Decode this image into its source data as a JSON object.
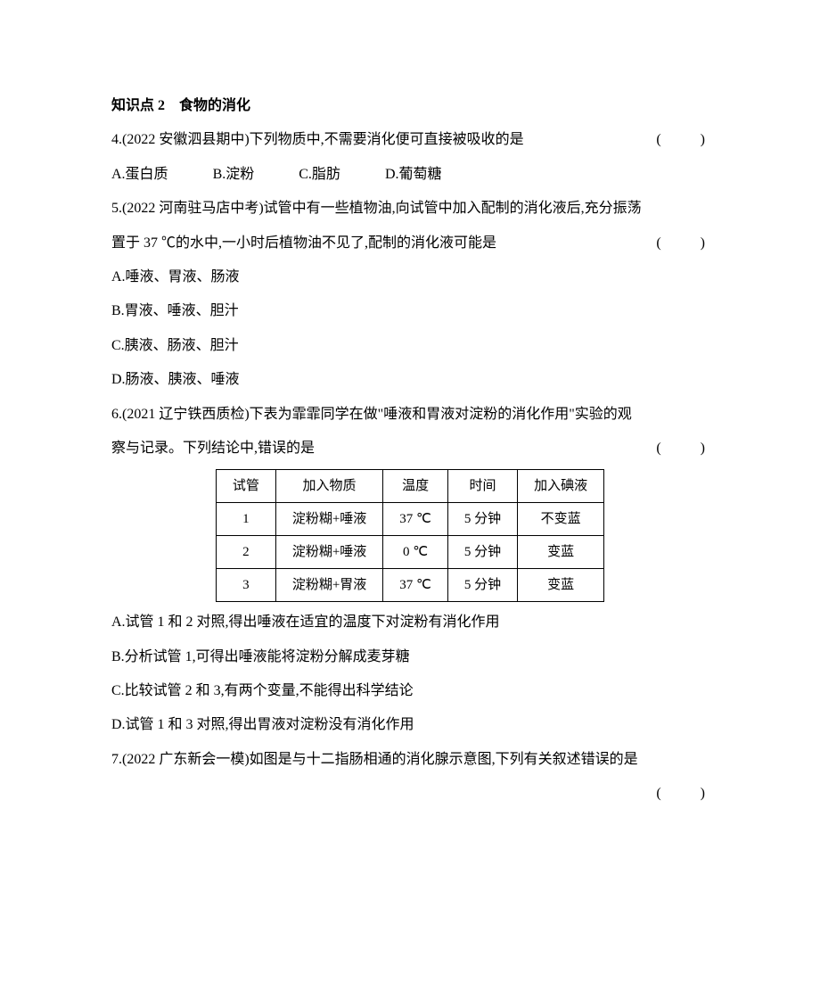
{
  "section_title": "知识点 2　食物的消化",
  "q4": {
    "stem": "4.(2022 安徽泗县期中)下列物质中,不需要消化便可直接被吸收的是",
    "paren": "(　　)",
    "options": {
      "A": "A.蛋白质",
      "B": "B.淀粉",
      "C": "C.脂肪",
      "D": "D.葡萄糖"
    }
  },
  "q5": {
    "stem_line1": "5.(2022 河南驻马店中考)试管中有一些植物油,向试管中加入配制的消化液后,充分振荡",
    "stem_line2": "置于 37 ℃的水中,一小时后植物油不见了,配制的消化液可能是",
    "paren": "(　　)",
    "options": {
      "A": "A.唾液、胃液、肠液",
      "B": "B.胃液、唾液、胆汁",
      "C": "C.胰液、肠液、胆汁",
      "D": "D.肠液、胰液、唾液"
    }
  },
  "q6": {
    "stem_line1": "6.(2021 辽宁铁西质检)下表为霏霏同学在做\"唾液和胃液对淀粉的消化作用\"实验的观",
    "stem_line2": "察与记录。下列结论中,错误的是",
    "paren": "(　　)",
    "table": {
      "headers": [
        "试管",
        "加入物质",
        "温度",
        "时间",
        "加入碘液"
      ],
      "rows": [
        [
          "1",
          "淀粉糊+唾液",
          "37 ℃",
          "5 分钟",
          "不变蓝"
        ],
        [
          "2",
          "淀粉糊+唾液",
          "0 ℃",
          "5 分钟",
          "变蓝"
        ],
        [
          "3",
          "淀粉糊+胃液",
          "37 ℃",
          "5 分钟",
          "变蓝"
        ]
      ]
    },
    "options": {
      "A": "A.试管 1 和 2 对照,得出唾液在适宜的温度下对淀粉有消化作用",
      "B": "B.分析试管 1,可得出唾液能将淀粉分解成麦芽糖",
      "C": "C.比较试管 2 和 3,有两个变量,不能得出科学结论",
      "D": "D.试管 1 和 3 对照,得出胃液对淀粉没有消化作用"
    }
  },
  "q7": {
    "stem": "7.(2022 广东新会一模)如图是与十二指肠相通的消化腺示意图,下列有关叙述错误的是",
    "paren": "(　　)"
  }
}
